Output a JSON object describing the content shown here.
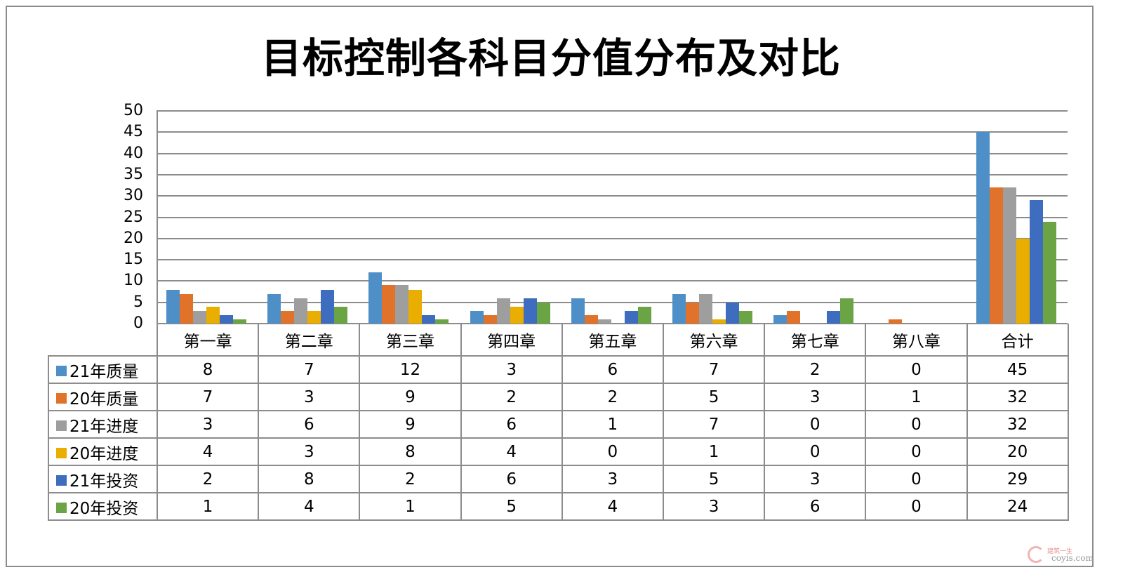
{
  "title": "目标控制各科目分值分布及对比",
  "chart_data": {
    "type": "bar",
    "title": "目标控制各科目分值分布及对比",
    "xlabel": "",
    "ylabel": "",
    "ylim": [
      0,
      50
    ],
    "yticks": [
      0,
      5,
      10,
      15,
      20,
      25,
      30,
      35,
      40,
      45,
      50
    ],
    "grid": true,
    "legend_position": "data-table-left",
    "categories": [
      "第一章",
      "第二章",
      "第三章",
      "第四章",
      "第五章",
      "第六章",
      "第七章",
      "第八章",
      "合计"
    ],
    "series": [
      {
        "name": "21年质量",
        "color": "#4f8fc8",
        "values": [
          8,
          7,
          12,
          3,
          6,
          7,
          2,
          0,
          45
        ]
      },
      {
        "name": "20年质量",
        "color": "#e0722a",
        "values": [
          7,
          3,
          9,
          2,
          2,
          5,
          3,
          1,
          32
        ]
      },
      {
        "name": "21年进度",
        "color": "#9e9e9e",
        "values": [
          3,
          6,
          9,
          6,
          1,
          7,
          0,
          0,
          32
        ]
      },
      {
        "name": "20年进度",
        "color": "#eaae00",
        "values": [
          4,
          3,
          8,
          4,
          0,
          1,
          0,
          0,
          20
        ]
      },
      {
        "name": "21年投资",
        "color": "#3e6cbf",
        "values": [
          2,
          8,
          2,
          6,
          3,
          5,
          3,
          0,
          29
        ]
      },
      {
        "name": "20年投资",
        "color": "#6aa444",
        "values": [
          1,
          4,
          1,
          5,
          4,
          3,
          6,
          0,
          24
        ]
      }
    ]
  },
  "watermark": {
    "line1": "建筑一生",
    "line2": "coyis.com"
  }
}
